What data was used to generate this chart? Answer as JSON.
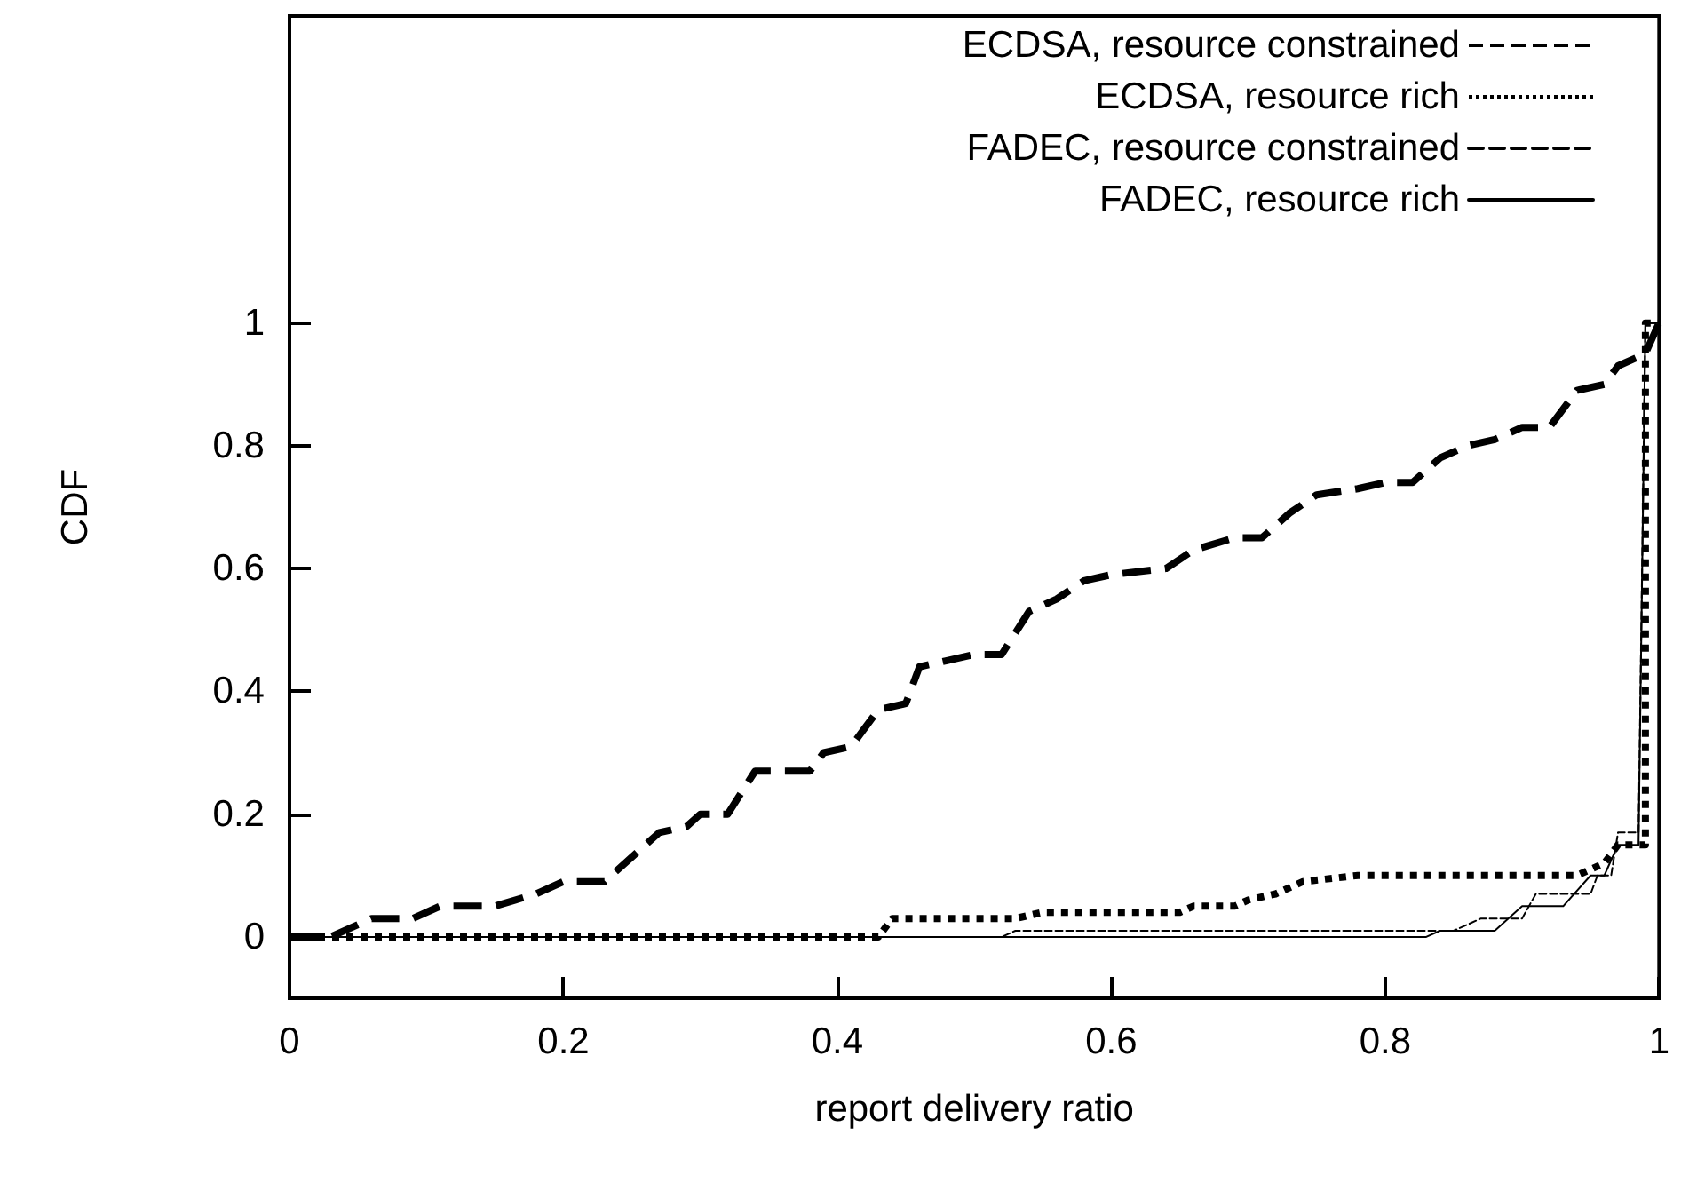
{
  "chart_data": {
    "type": "line",
    "xlabel": "report delivery ratio",
    "ylabel": "CDF",
    "xlim": [
      0,
      1
    ],
    "ylim": [
      -0.1,
      1.5
    ],
    "xticks": [
      0,
      0.2,
      0.4,
      0.6,
      0.8,
      1
    ],
    "yticks": [
      0,
      0.2,
      0.4,
      0.6,
      0.8,
      1
    ],
    "grid": false,
    "legend": "top right",
    "marker": "none",
    "series": [
      {
        "name": "ECDSA, resource constrained",
        "color": "#000000",
        "line_style": "dashed",
        "x": [
          0,
          0.03,
          0.06,
          0.09,
          0.11,
          0.15,
          0.18,
          0.2,
          0.23,
          0.25,
          0.27,
          0.29,
          0.3,
          0.32,
          0.34,
          0.38,
          0.39,
          0.41,
          0.43,
          0.45,
          0.46,
          0.48,
          0.5,
          0.52,
          0.54,
          0.56,
          0.58,
          0.6,
          0.64,
          0.66,
          0.69,
          0.71,
          0.73,
          0.75,
          0.78,
          0.8,
          0.82,
          0.84,
          0.86,
          0.88,
          0.9,
          0.92,
          0.94,
          0.96,
          0.97,
          0.99,
          1
        ],
        "values": [
          0,
          0,
          0.03,
          0.03,
          0.05,
          0.05,
          0.07,
          0.09,
          0.09,
          0.13,
          0.17,
          0.18,
          0.2,
          0.2,
          0.27,
          0.27,
          0.3,
          0.31,
          0.37,
          0.38,
          0.44,
          0.45,
          0.46,
          0.46,
          0.53,
          0.55,
          0.58,
          0.59,
          0.6,
          0.63,
          0.65,
          0.65,
          0.69,
          0.72,
          0.73,
          0.74,
          0.74,
          0.78,
          0.8,
          0.81,
          0.83,
          0.83,
          0.89,
          0.9,
          0.93,
          0.95,
          1
        ]
      },
      {
        "name": "ECDSA, resource rich",
        "color": "#000000",
        "line_style": "dotted",
        "x": [
          0,
          0.43,
          0.44,
          0.53,
          0.55,
          0.65,
          0.66,
          0.69,
          0.7,
          0.72,
          0.74,
          0.78,
          0.94,
          0.95,
          0.96,
          0.97,
          0.99,
          0.99,
          1
        ],
        "values": [
          0,
          0,
          0.03,
          0.03,
          0.04,
          0.04,
          0.05,
          0.05,
          0.06,
          0.07,
          0.09,
          0.1,
          0.1,
          0.11,
          0.12,
          0.15,
          0.15,
          1,
          1
        ]
      },
      {
        "name": "FADEC, resource constrained",
        "color": "#000000",
        "line_style": "dashed",
        "x": [
          0,
          0.52,
          0.53,
          0.85,
          0.87,
          0.9,
          0.91,
          0.95,
          0.955,
          0.965,
          0.97,
          0.985,
          0.99,
          1
        ],
        "values": [
          0,
          0,
          0.01,
          0.01,
          0.03,
          0.03,
          0.07,
          0.07,
          0.1,
          0.1,
          0.17,
          0.17,
          1,
          1
        ]
      },
      {
        "name": "FADEC, resource rich",
        "color": "#000000",
        "line_style": "solid",
        "x": [
          0,
          0.83,
          0.84,
          0.88,
          0.9,
          0.93,
          0.95,
          0.96,
          0.97,
          0.985,
          0.99,
          1
        ],
        "values": [
          0,
          0,
          0.01,
          0.01,
          0.05,
          0.05,
          0.1,
          0.1,
          0.15,
          0.15,
          1,
          1
        ]
      }
    ]
  }
}
